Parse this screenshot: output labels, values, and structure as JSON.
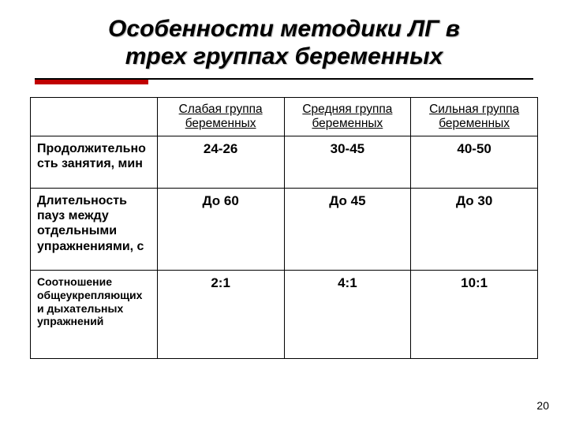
{
  "title_line1": "Особенности методики ЛГ в",
  "title_line2": "трех группах беременных",
  "table": {
    "columns": [
      "Слабая группа беременных",
      "Средняя группа беременных",
      "Сильная группа беременных"
    ],
    "rows": [
      {
        "label": "Продолжительность занятия, мин",
        "values": [
          "24-26",
          "30-45",
          "40-50"
        ],
        "label_fontsize": 16
      },
      {
        "label": "Длительность пауз между отдельными упражнениями, с",
        "values": [
          "До 60",
          "До 45",
          "До 30"
        ],
        "label_fontsize": 16
      },
      {
        "label": "Соотношение общеукрепляющих и дыхательных упражнений",
        "values": [
          "2:1",
          "4:1",
          "10:1"
        ],
        "label_fontsize": 14
      }
    ]
  },
  "page_number": "20",
  "colors": {
    "accent": "#c00000",
    "border": "#000000",
    "background": "#ffffff",
    "text": "#000000"
  }
}
